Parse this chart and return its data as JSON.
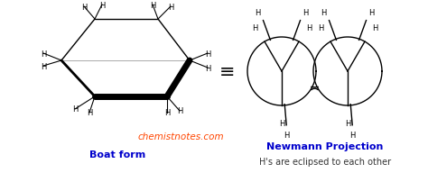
{
  "background_color": "#ffffff",
  "website_text": "chemistnotes.com",
  "website_color": "#ff4500",
  "label_boat": "Boat form",
  "label_boat_color": "#0000cc",
  "label_newman": "Newmann Projection",
  "label_newman_color": "#0000cc",
  "label_eclipsed": "H's are eclipsed to each other",
  "label_eclipsed_color": "#333333"
}
